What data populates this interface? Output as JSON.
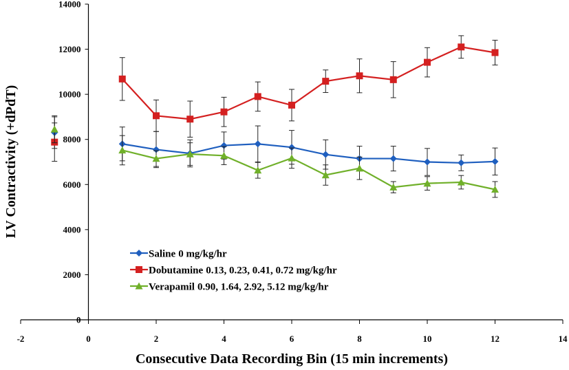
{
  "chart_data": {
    "type": "line",
    "title": "",
    "xlabel": "Consecutive Data Recording Bin (15 min increments)",
    "ylabel": "LV Contractivity (+dPdT)",
    "xlim": [
      -2,
      14
    ],
    "ylim": [
      0,
      14000
    ],
    "x_ticks": [
      -2,
      0,
      2,
      4,
      6,
      8,
      10,
      12,
      14
    ],
    "y_ticks": [
      0,
      2000,
      4000,
      6000,
      8000,
      10000,
      12000,
      14000
    ],
    "legend_position": "bottom-left",
    "series": [
      {
        "name": "Saline",
        "dose": "0 mg/kg/hr",
        "color": "#1f5fbf",
        "marker": "diamond",
        "baseline": {
          "x": -1,
          "y": 8300,
          "err": 700
        },
        "x": [
          1,
          2,
          3,
          4,
          5,
          6,
          7,
          8,
          9,
          10,
          11,
          12
        ],
        "y": [
          7800,
          7550,
          7380,
          7730,
          7800,
          7650,
          7330,
          7150,
          7150,
          7000,
          6960,
          7020
        ],
        "err": [
          750,
          800,
          600,
          600,
          800,
          750,
          650,
          550,
          550,
          600,
          350,
          600
        ]
      },
      {
        "name": "Dobutamine",
        "dose": "0.13, 0.23, 0.41, 0.72 mg/kg/hr",
        "color": "#d42020",
        "marker": "square",
        "baseline": {
          "x": -1,
          "y": 7880,
          "err": 850
        },
        "x": [
          1,
          2,
          3,
          4,
          5,
          6,
          7,
          8,
          9,
          10,
          11,
          12
        ],
        "y": [
          10680,
          9050,
          8900,
          9220,
          9900,
          9520,
          10580,
          10820,
          10650,
          11420,
          12100,
          11850
        ],
        "err": [
          950,
          700,
          800,
          650,
          650,
          700,
          500,
          750,
          800,
          650,
          500,
          550
        ]
      },
      {
        "name": "Verapamil",
        "dose": "0.90, 1.64, 2.92, 5.12 mg/kg/hr",
        "color": "#70b02a",
        "marker": "triangle",
        "baseline": {
          "x": -1,
          "y": 8450,
          "err": 600
        },
        "x": [
          1,
          2,
          3,
          4,
          5,
          6,
          7,
          8,
          9,
          10,
          11,
          12
        ],
        "y": [
          7520,
          7150,
          7350,
          7280,
          6630,
          7170,
          6420,
          6720,
          5880,
          6050,
          6100,
          5780
        ],
        "err": [
          650,
          350,
          500,
          400,
          350,
          450,
          450,
          500,
          250,
          300,
          300,
          350
        ]
      }
    ]
  }
}
